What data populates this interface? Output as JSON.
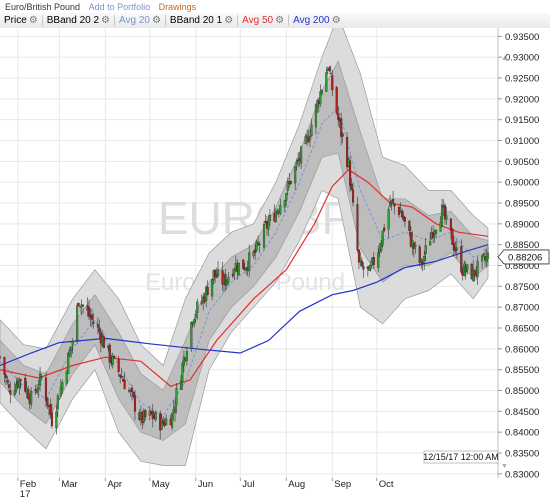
{
  "header": {
    "title": "Euro/British Pound",
    "add_portfolio": "Add to Portfolio",
    "drawings": "Drawings"
  },
  "toolbar": {
    "items": [
      {
        "label": "Price",
        "color": "#222222"
      },
      {
        "label": "BBand 20 2",
        "color": "#222222"
      },
      {
        "label": "Avg 20",
        "color": "#7a96c8"
      },
      {
        "label": "BBand 20 1",
        "color": "#222222"
      },
      {
        "label": "Avg 50",
        "color": "#e03030"
      },
      {
        "label": "Avg 200",
        "color": "#2233cc"
      }
    ]
  },
  "watermark": {
    "symbol": "EURGBP",
    "name": "Euro/British Pound"
  },
  "date_label": "12/15/17 12:00 AM",
  "chart_data": {
    "type": "candlestick",
    "title": "Euro/British Pound",
    "y_ticks": [
      "0.83000",
      "0.83500",
      "0.84000",
      "0.84500",
      "0.85000",
      "0.85500",
      "0.86000",
      "0.86500",
      "0.87000",
      "0.87500",
      "0.88000",
      "0.88500",
      "0.89000",
      "0.89500",
      "0.90000",
      "0.90500",
      "0.91000",
      "0.91500",
      "0.92000",
      "0.92500",
      "0.93000",
      "0.93500"
    ],
    "x_ticks": [
      {
        "label": "Feb",
        "label2": "17",
        "date": "2017-02-01"
      },
      {
        "label": "Mar",
        "date": "2017-03-01"
      },
      {
        "label": "Apr",
        "date": "2017-04-01"
      },
      {
        "label": "May",
        "date": "2017-05-01"
      },
      {
        "label": "Jun",
        "date": "2017-06-01"
      },
      {
        "label": "Jul",
        "date": "2017-07-01"
      },
      {
        "label": "Aug",
        "date": "2017-08-01"
      },
      {
        "label": "Sep",
        "date": "2017-09-01"
      },
      {
        "label": "Oct",
        "date": "2017-10-01"
      }
    ],
    "ylim": [
      0.829,
      0.937
    ],
    "last_value": "0.88206",
    "colors": {
      "up": "#2e9e2e",
      "down": "#b02020",
      "avg20": "#7a96c8",
      "avg50": "#e03030",
      "avg200": "#2233cc"
    },
    "price_path": [
      [
        "2017-01-20",
        0.858
      ],
      [
        "2017-01-26",
        0.85
      ],
      [
        "2017-02-03",
        0.853
      ],
      [
        "2017-02-10",
        0.848
      ],
      [
        "2017-02-17",
        0.853
      ],
      [
        "2017-02-24",
        0.843
      ],
      [
        "2017-03-03",
        0.852
      ],
      [
        "2017-03-10",
        0.862
      ],
      [
        "2017-03-14",
        0.872
      ],
      [
        "2017-03-21",
        0.868
      ],
      [
        "2017-03-28",
        0.864
      ],
      [
        "2017-04-04",
        0.858
      ],
      [
        "2017-04-11",
        0.854
      ],
      [
        "2017-04-18",
        0.849
      ],
      [
        "2017-04-25",
        0.843
      ],
      [
        "2017-05-02",
        0.844
      ],
      [
        "2017-05-09",
        0.842
      ],
      [
        "2017-05-16",
        0.844
      ],
      [
        "2017-05-23",
        0.856
      ],
      [
        "2017-05-30",
        0.868
      ],
      [
        "2017-06-06",
        0.872
      ],
      [
        "2017-06-13",
        0.878
      ],
      [
        "2017-06-20",
        0.876
      ],
      [
        "2017-06-27",
        0.88
      ],
      [
        "2017-07-04",
        0.88
      ],
      [
        "2017-07-11",
        0.883
      ],
      [
        "2017-07-18",
        0.889
      ],
      [
        "2017-07-25",
        0.893
      ],
      [
        "2017-08-01",
        0.898
      ],
      [
        "2017-08-08",
        0.904
      ],
      [
        "2017-08-15",
        0.91
      ],
      [
        "2017-08-22",
        0.919
      ],
      [
        "2017-08-29",
        0.928
      ],
      [
        "2017-09-05",
        0.915
      ],
      [
        "2017-09-12",
        0.904
      ],
      [
        "2017-09-19",
        0.88
      ],
      [
        "2017-09-26",
        0.878
      ],
      [
        "2017-10-03",
        0.885
      ],
      [
        "2017-10-10",
        0.895
      ],
      [
        "2017-10-17",
        0.893
      ],
      [
        "2017-10-24",
        0.886
      ],
      [
        "2017-10-31",
        0.88
      ],
      [
        "2017-11-07",
        0.888
      ],
      [
        "2017-11-14",
        0.893
      ],
      [
        "2017-11-21",
        0.886
      ],
      [
        "2017-11-28",
        0.879
      ],
      [
        "2017-12-05",
        0.878
      ],
      [
        "2017-12-15",
        0.8821
      ]
    ],
    "avg200": [
      [
        "2017-01-20",
        0.856
      ],
      [
        "2017-02-10",
        0.859
      ],
      [
        "2017-03-01",
        0.8615
      ],
      [
        "2017-04-01",
        0.8625
      ],
      [
        "2017-05-01",
        0.8612
      ],
      [
        "2017-06-01",
        0.86
      ],
      [
        "2017-07-01",
        0.859
      ],
      [
        "2017-07-20",
        0.862
      ],
      [
        "2017-08-10",
        0.869
      ],
      [
        "2017-09-01",
        0.873
      ],
      [
        "2017-09-15",
        0.874
      ],
      [
        "2017-10-01",
        0.876
      ],
      [
        "2017-10-20",
        0.8795
      ],
      [
        "2017-11-10",
        0.881
      ],
      [
        "2017-12-01",
        0.8835
      ],
      [
        "2017-12-15",
        0.885
      ]
    ],
    "avg50": [
      [
        "2017-01-20",
        0.855
      ],
      [
        "2017-02-15",
        0.853
      ],
      [
        "2017-03-10",
        0.856
      ],
      [
        "2017-04-01",
        0.858
      ],
      [
        "2017-04-25",
        0.857
      ],
      [
        "2017-05-15",
        0.851
      ],
      [
        "2017-05-28",
        0.8525
      ],
      [
        "2017-06-15",
        0.862
      ],
      [
        "2017-07-10",
        0.872
      ],
      [
        "2017-08-01",
        0.879
      ],
      [
        "2017-08-20",
        0.89
      ],
      [
        "2017-09-01",
        0.899
      ],
      [
        "2017-09-12",
        0.903
      ],
      [
        "2017-09-25",
        0.9
      ],
      [
        "2017-10-10",
        0.895
      ],
      [
        "2017-10-25",
        0.894
      ],
      [
        "2017-11-10",
        0.89
      ],
      [
        "2017-11-25",
        0.888
      ],
      [
        "2017-12-15",
        0.887
      ]
    ],
    "bband_dates": [
      "2017-01-20",
      "2017-02-05",
      "2017-02-20",
      "2017-03-10",
      "2017-03-25",
      "2017-04-10",
      "2017-04-25",
      "2017-05-10",
      "2017-05-25",
      "2017-06-10",
      "2017-06-25",
      "2017-07-10",
      "2017-07-25",
      "2017-08-10",
      "2017-08-25",
      "2017-09-05",
      "2017-09-20",
      "2017-10-05",
      "2017-10-20",
      "2017-11-05",
      "2017-11-20",
      "2017-12-05",
      "2017-12-15"
    ],
    "avg20": [
      0.857,
      0.851,
      0.848,
      0.86,
      0.867,
      0.856,
      0.847,
      0.844,
      0.852,
      0.869,
      0.876,
      0.88,
      0.888,
      0.9,
      0.914,
      0.918,
      0.898,
      0.886,
      0.888,
      0.886,
      0.888,
      0.882,
      0.883
    ],
    "bb1_upper": [
      0.862,
      0.856,
      0.854,
      0.866,
      0.873,
      0.864,
      0.854,
      0.85,
      0.862,
      0.876,
      0.882,
      0.885,
      0.894,
      0.907,
      0.922,
      0.929,
      0.912,
      0.896,
      0.896,
      0.892,
      0.893,
      0.887,
      0.886
    ],
    "bb1_lower": [
      0.852,
      0.846,
      0.842,
      0.854,
      0.861,
      0.848,
      0.84,
      0.838,
      0.842,
      0.862,
      0.87,
      0.875,
      0.882,
      0.893,
      0.906,
      0.907,
      0.884,
      0.876,
      0.88,
      0.88,
      0.883,
      0.877,
      0.88
    ],
    "bb2_upper": [
      0.867,
      0.861,
      0.86,
      0.872,
      0.879,
      0.872,
      0.861,
      0.856,
      0.872,
      0.883,
      0.888,
      0.89,
      0.9,
      0.914,
      0.93,
      0.94,
      0.926,
      0.906,
      0.904,
      0.898,
      0.898,
      0.892,
      0.889
    ],
    "bb2_lower": [
      0.847,
      0.841,
      0.836,
      0.848,
      0.855,
      0.84,
      0.833,
      0.832,
      0.832,
      0.855,
      0.864,
      0.87,
      0.876,
      0.886,
      0.898,
      0.896,
      0.87,
      0.866,
      0.872,
      0.874,
      0.878,
      0.872,
      0.877
    ]
  }
}
